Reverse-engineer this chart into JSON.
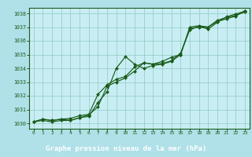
{
  "title": "Graphe pression niveau de la mer (hPa)",
  "bg_color": "#b0e0e8",
  "plot_bg_color": "#c8eef4",
  "grid_color": "#90c8c0",
  "line_color": "#1a5c1a",
  "marker_color": "#1a5c1a",
  "label_bg_color": "#2a6e2a",
  "label_text_color": "#ffffff",
  "spine_color": "#1a5c1a",
  "xlim": [
    -0.5,
    23.5
  ],
  "ylim": [
    1029.6,
    1038.4
  ],
  "yticks": [
    1030,
    1031,
    1032,
    1033,
    1034,
    1035,
    1036,
    1037,
    1038
  ],
  "xticks": [
    0,
    1,
    2,
    3,
    4,
    5,
    6,
    7,
    8,
    9,
    10,
    11,
    12,
    13,
    14,
    15,
    16,
    17,
    18,
    19,
    20,
    21,
    22,
    23
  ],
  "series": [
    [
      1030.1,
      1030.3,
      1030.2,
      1030.3,
      1030.2,
      1030.4,
      1030.5,
      1031.5,
      1032.3,
      1034.0,
      1034.85,
      1034.3,
      1034.0,
      1034.2,
      1034.3,
      1034.5,
      1035.0,
      1036.9,
      1037.0,
      1037.0,
      1037.5,
      1037.7,
      1037.85,
      1038.1
    ],
    [
      1030.1,
      1030.3,
      1030.2,
      1030.3,
      1030.35,
      1030.55,
      1030.65,
      1032.1,
      1032.8,
      1033.2,
      1033.4,
      1034.1,
      1034.4,
      1034.3,
      1034.35,
      1034.55,
      1035.1,
      1036.8,
      1037.05,
      1036.85,
      1037.35,
      1037.75,
      1037.95,
      1038.15
    ],
    [
      1030.1,
      1030.2,
      1030.1,
      1030.2,
      1030.2,
      1030.4,
      1030.6,
      1031.2,
      1032.7,
      1033.0,
      1033.3,
      1033.8,
      1034.4,
      1034.3,
      1034.5,
      1034.8,
      1035.0,
      1037.0,
      1037.1,
      1037.0,
      1037.4,
      1037.6,
      1037.8,
      1038.2
    ]
  ]
}
